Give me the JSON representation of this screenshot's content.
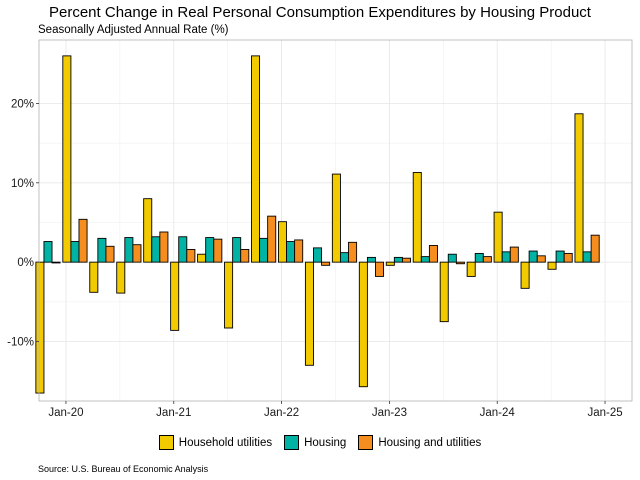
{
  "chart_data": {
    "type": "bar",
    "title": "Percent Change in Real Personal Consumption Expenditures by Housing Product",
    "subtitle": "Seasonally Adjusted Annual Rate (%)",
    "source": "Source: U.S. Bureau of Economic Analysis",
    "x_ticks": [
      {
        "label": "Jan-20",
        "date": "2020-01"
      },
      {
        "label": "Jan-21",
        "date": "2021-01"
      },
      {
        "label": "Jan-22",
        "date": "2022-01"
      },
      {
        "label": "Jan-23",
        "date": "2023-01"
      },
      {
        "label": "Jan-24",
        "date": "2024-01"
      },
      {
        "label": "Jan-25",
        "date": "2025-01"
      }
    ],
    "y_ticks": [
      {
        "label": "-10%",
        "value": -10
      },
      {
        "label": "0%",
        "value": 0
      },
      {
        "label": "10%",
        "value": 10
      },
      {
        "label": "20%",
        "value": 20
      }
    ],
    "ylim": [
      -17.5,
      28
    ],
    "xlim": [
      "2019-10",
      "2025-04"
    ],
    "grid": true,
    "legend_position": "bottom",
    "categories": [
      "2019-Q4",
      "2020-Q1",
      "2020-Q2",
      "2020-Q3",
      "2020-Q4",
      "2021-Q1",
      "2021-Q2",
      "2021-Q3",
      "2021-Q4",
      "2022-Q1",
      "2022-Q2",
      "2022-Q3",
      "2022-Q4",
      "2023-Q1",
      "2023-Q2",
      "2023-Q3",
      "2023-Q4",
      "2024-Q1",
      "2024-Q2",
      "2024-Q3",
      "2024-Q4"
    ],
    "series": [
      {
        "name": "Household utilities",
        "color": "#F2CA00",
        "values": [
          -16.5,
          26.0,
          -3.8,
          -3.9,
          8.0,
          -8.6,
          1.0,
          -8.3,
          26.0,
          5.1,
          -13.0,
          11.1,
          -15.7,
          -0.4,
          11.3,
          -7.5,
          -1.8,
          6.3,
          -3.3,
          -0.9,
          18.7
        ]
      },
      {
        "name": "Housing",
        "color": "#00B3A4",
        "values": [
          2.6,
          2.6,
          3.0,
          3.1,
          3.2,
          3.2,
          3.1,
          3.1,
          3.0,
          2.6,
          1.8,
          1.2,
          0.6,
          0.6,
          0.7,
          1.0,
          1.1,
          1.3,
          1.4,
          1.4,
          1.3
        ]
      },
      {
        "name": "Housing and utilities",
        "color": "#F58E1E",
        "values": [
          -0.1,
          5.4,
          2.0,
          2.2,
          3.8,
          1.6,
          2.9,
          1.6,
          5.8,
          2.8,
          -0.4,
          2.5,
          -1.8,
          0.5,
          2.1,
          -0.2,
          0.7,
          1.9,
          0.8,
          1.1,
          3.4
        ]
      }
    ]
  }
}
